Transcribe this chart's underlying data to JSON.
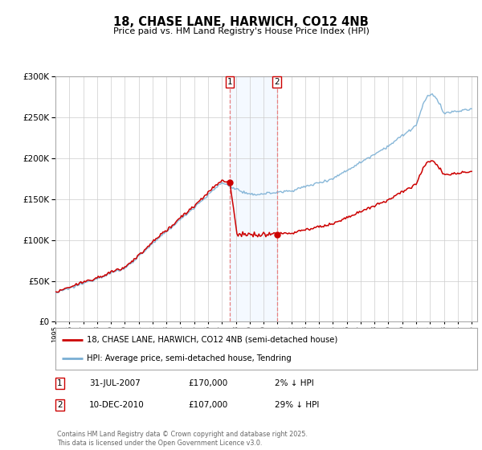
{
  "title": "18, CHASE LANE, HARWICH, CO12 4NB",
  "subtitle": "Price paid vs. HM Land Registry's House Price Index (HPI)",
  "ylim": [
    0,
    300000
  ],
  "yticks": [
    0,
    50000,
    100000,
    150000,
    200000,
    250000,
    300000
  ],
  "x_start_year": 1995,
  "x_end_year": 2025,
  "marker1_x": 2007.583,
  "marker1_price": 170000,
  "marker1_label": "31-JUL-2007",
  "marker1_price_str": "£170,000",
  "marker1_pct": "2% ↓ HPI",
  "marker2_x": 2010.958,
  "marker2_price": 107000,
  "marker2_label": "10-DEC-2010",
  "marker2_price_str": "£107,000",
  "marker2_pct": "29% ↓ HPI",
  "legend_line1": "18, CHASE LANE, HARWICH, CO12 4NB (semi-detached house)",
  "legend_line2": "HPI: Average price, semi-detached house, Tendring",
  "footer": "Contains HM Land Registry data © Crown copyright and database right 2025.\nThis data is licensed under the Open Government Licence v3.0.",
  "line_color_property": "#cc0000",
  "line_color_hpi": "#7aafd4",
  "shaded_region_color": "#ddeeff",
  "marker_line_color": "#e88080",
  "background_color": "#ffffff"
}
